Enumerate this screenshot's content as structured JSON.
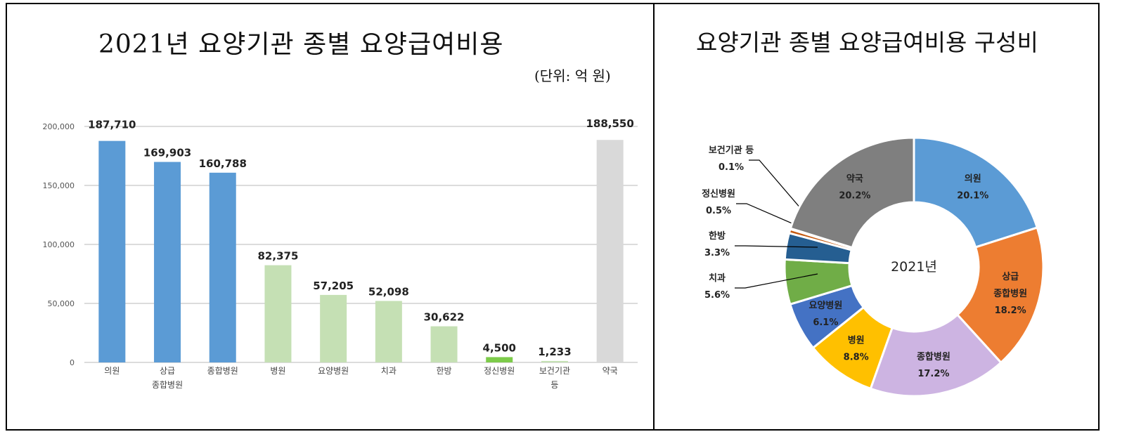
{
  "chart_data": [
    {
      "type": "bar",
      "title": "2021년 요양기관 종별 요양급여비용",
      "unit": "(단위: 억 원)",
      "categories": [
        [
          "의원"
        ],
        [
          "상급",
          "종합병원"
        ],
        [
          "종합병원"
        ],
        [
          "병원"
        ],
        [
          "요양병원"
        ],
        [
          "치과"
        ],
        [
          "한방"
        ],
        [
          "정신병원"
        ],
        [
          "보건기관",
          "등"
        ],
        [
          "약국"
        ]
      ],
      "values": [
        187710,
        169903,
        160788,
        82375,
        57205,
        52098,
        30622,
        4500,
        1233,
        188550
      ],
      "data_labels": [
        "187,710",
        "169,903",
        "160,788",
        "82,375",
        "57,205",
        "52,098",
        "30,622",
        "4,500",
        "1,233",
        "188,550"
      ],
      "colors": [
        "#5B9BD5",
        "#5B9BD5",
        "#5B9BD5",
        "#C5E0B4",
        "#C5E0B4",
        "#C5E0B4",
        "#C5E0B4",
        "#7DCB4A",
        "#C5E0B4",
        "#D9D9D9"
      ],
      "yticks": [
        0,
        50000,
        100000,
        150000,
        200000
      ],
      "ytick_labels": [
        "0",
        "50,000",
        "100,000",
        "150,000",
        "200,000"
      ],
      "ylim": [
        0,
        200000
      ],
      "grid": true
    },
    {
      "type": "pie",
      "title": "요양기관 종별 요양급여비용 구성비",
      "center_label": "2021년",
      "slices": [
        {
          "name": [
            "의원"
          ],
          "value": 20.1,
          "label": "20.1%",
          "color": "#5B9BD5"
        },
        {
          "name": [
            "상급",
            "종합병원"
          ],
          "value": 18.2,
          "label": "18.2%",
          "color": "#ED7D31"
        },
        {
          "name": [
            "종합병원"
          ],
          "value": 17.2,
          "label": "17.2%",
          "color": "#CDB4E2"
        },
        {
          "name": [
            "병원"
          ],
          "value": 8.8,
          "label": "8.8%",
          "color": "#FFC000"
        },
        {
          "name": [
            "요양병원"
          ],
          "value": 6.1,
          "label": "6.1%",
          "color": "#4472C4"
        },
        {
          "name": [
            "치과"
          ],
          "value": 5.6,
          "label": "5.6%",
          "color": "#70AD47"
        },
        {
          "name": [
            "한방"
          ],
          "value": 3.3,
          "label": "3.3%",
          "color": "#255E91"
        },
        {
          "name": [
            "정신병원"
          ],
          "value": 0.5,
          "label": "0.5%",
          "color": "#C55A11"
        },
        {
          "name": [
            "보건기관 등"
          ],
          "value": 0.1,
          "label": "0.1%",
          "color": "#A5A5A5"
        },
        {
          "name": [
            "약국"
          ],
          "value": 20.2,
          "label": "20.2%",
          "color": "#7F7F7F"
        }
      ]
    }
  ]
}
